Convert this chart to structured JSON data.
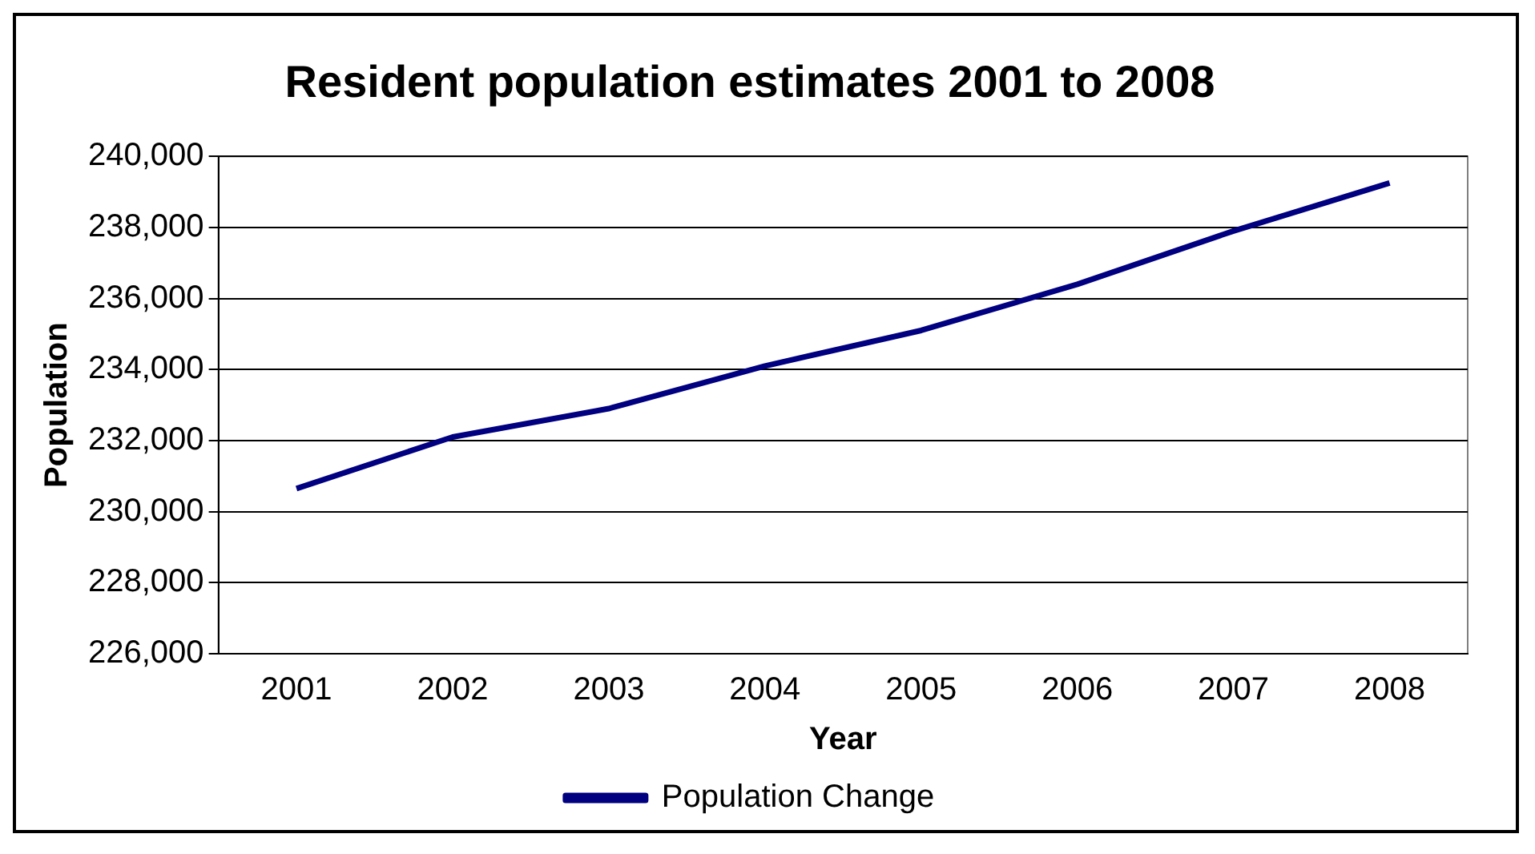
{
  "chart_data": {
    "type": "line",
    "title": "Resident population estimates 2001 to 2008",
    "xlabel": "Year",
    "ylabel": "Population",
    "categories": [
      "2001",
      "2002",
      "2003",
      "2004",
      "2005",
      "2006",
      "2007",
      "2008"
    ],
    "series": [
      {
        "name": "Population Change",
        "color": "#000080",
        "values": [
          230650,
          232100,
          232900,
          234100,
          235100,
          236400,
          237900,
          239250
        ]
      }
    ],
    "ylim": [
      226000,
      240000
    ],
    "yticks": [
      {
        "value": 226000,
        "label": "226,000"
      },
      {
        "value": 228000,
        "label": "228,000"
      },
      {
        "value": 230000,
        "label": "230,000"
      },
      {
        "value": 232000,
        "label": "232,000"
      },
      {
        "value": 234000,
        "label": "234,000"
      },
      {
        "value": 236000,
        "label": "236,000"
      },
      {
        "value": 238000,
        "label": "238,000"
      },
      {
        "value": 240000,
        "label": "240,000"
      }
    ],
    "grid": "y",
    "legend": "bottom",
    "marker": "none",
    "line_style": "solid"
  }
}
